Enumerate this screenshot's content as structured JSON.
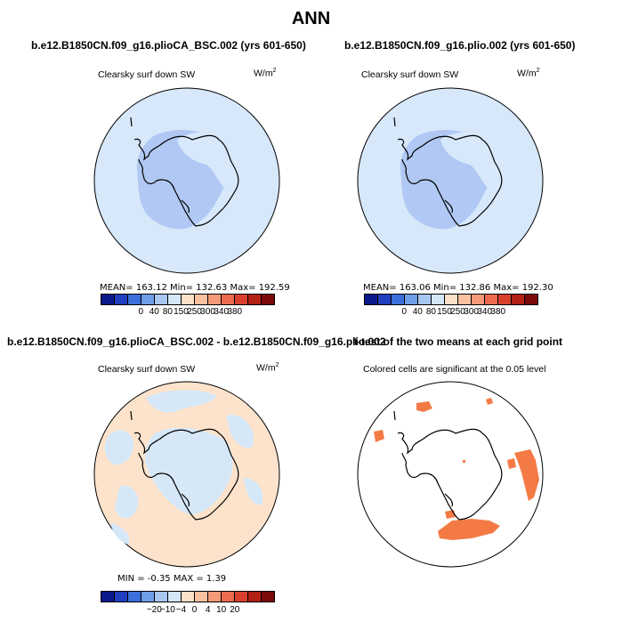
{
  "title": "ANN",
  "panels": [
    {
      "case_title": "b.e12.B1850CN.f09_g16.plioCA_BSC.002 (yrs 601-650)",
      "variable": "Clearsky surf down SW",
      "units_base": "W/m",
      "units_exp": "2",
      "stats": "MEAN= 163.12    Min= 132.63    Max= 192.59",
      "colorbar_labels": [
        "0",
        "40",
        "80",
        "150",
        "250",
        "300",
        "340",
        "380"
      ]
    },
    {
      "case_title": "b.e12.B1850CN.f09_g16.plio.002 (yrs 601-650)",
      "variable": "Clearsky surf down SW",
      "units_base": "W/m",
      "units_exp": "2",
      "stats": "MEAN= 163.06    Min= 132.86    Max= 192.30",
      "colorbar_labels": [
        "0",
        "40",
        "80",
        "150",
        "250",
        "300",
        "340",
        "380"
      ]
    },
    {
      "case_title": "b.e12.B1850CN.f09_g16.plioCA_BSC.002 - b.e12.B1850CN.f09_g16.plio.002",
      "variable": "Clearsky surf down SW",
      "units_base": "W/m",
      "units_exp": "2",
      "stats": "MIN =   -0.35  MAX =    1.39",
      "colorbar_labels": [
        "-20",
        "-10",
        "-4",
        "0",
        "4",
        "10",
        "20"
      ]
    },
    {
      "case_title": "t-test of the two means at each grid point",
      "variable": "Colored cells are significant at the 0.05 level"
    }
  ],
  "colors": {
    "abs_scale": [
      "#0a1a8c",
      "#1f3fbf",
      "#3a6fdc",
      "#6f9ee8",
      "#a7c6f0",
      "#d4e6f8",
      "#fce0c8",
      "#f9c1a0",
      "#f59a78",
      "#ec6a4f",
      "#d8402e",
      "#b32015",
      "#7a0a0a"
    ],
    "diff_scale": [
      "#0a1a8c",
      "#1f3fbf",
      "#3a6fdc",
      "#6f9ee8",
      "#a7c6f0",
      "#d4e6f8",
      "#fce0c8",
      "#f9c1a0",
      "#f59a78",
      "#ec6a4f",
      "#d8402e",
      "#b32015",
      "#7a0a0a"
    ],
    "ocean_light": "#d7e8fa",
    "interior_blue": "#b0c8f3",
    "diff_orange": "#fde3cc",
    "diff_blue": "#d6e8f8",
    "significant": "#f47a45"
  }
}
